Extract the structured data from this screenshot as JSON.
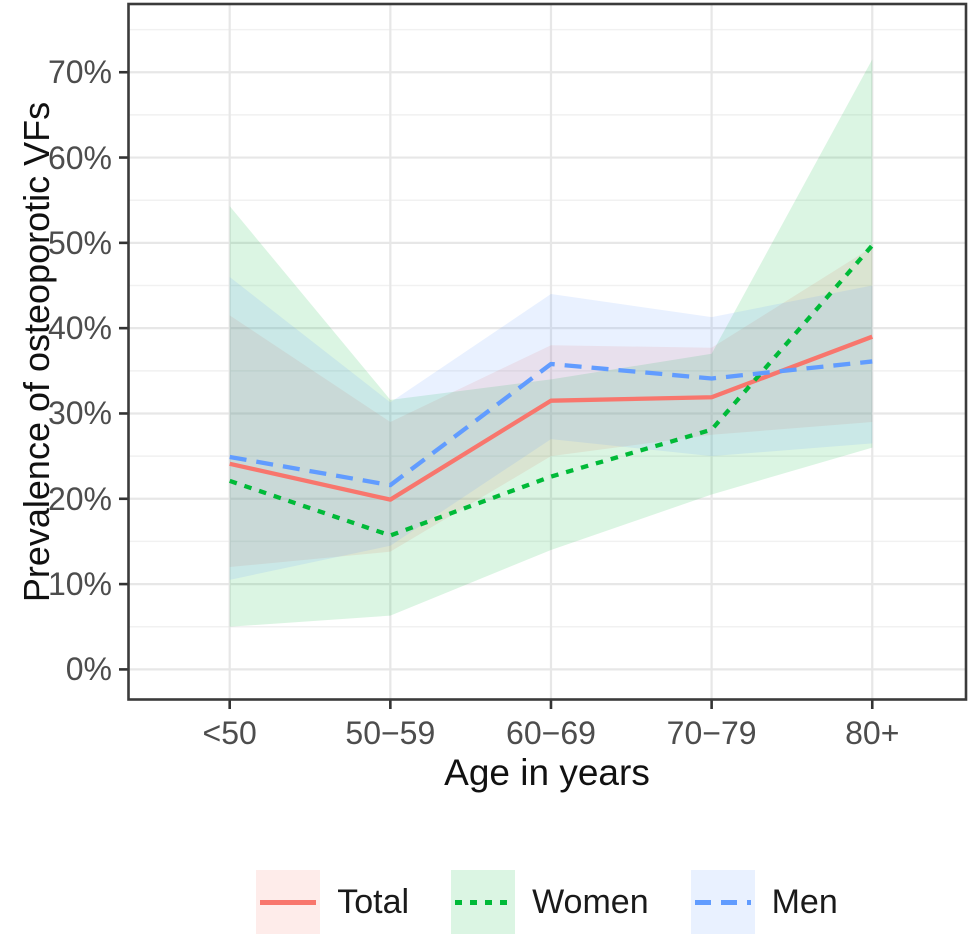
{
  "chart_data": {
    "type": "line",
    "title": "",
    "xlabel": "Age in years",
    "ylabel": "Prevalence of osteoporotic VFs",
    "categories": [
      "<50",
      "50−59",
      "60−69",
      "70−79",
      "80+"
    ],
    "y_ticks": [
      "0%",
      "10%",
      "20%",
      "30%",
      "40%",
      "50%",
      "60%",
      "70%"
    ],
    "y_tick_values": [
      0,
      10,
      20,
      30,
      40,
      50,
      60,
      70
    ],
    "y_minor_tick_values": [
      5,
      15,
      25,
      35,
      45,
      55,
      65,
      75
    ],
    "ylim": [
      -3.5,
      78
    ],
    "grid": "major and minor horizontal, major vertical at categories",
    "legend_position": "bottom",
    "units": "percent",
    "series": [
      {
        "name": "Total",
        "style": "solid",
        "color": "#F8766D",
        "values": [
          24.1,
          19.9,
          31.5,
          31.9,
          39.0
        ],
        "ci_low": [
          12.0,
          13.8,
          25.0,
          27.5,
          29.0
        ],
        "ci_high": [
          41.5,
          29.0,
          38.0,
          37.7,
          49.5
        ]
      },
      {
        "name": "Women",
        "style": "dotted",
        "color": "#00BA38",
        "values": [
          22.1,
          15.7,
          22.6,
          28.1,
          49.7
        ],
        "ci_low": [
          5.0,
          6.3,
          14.0,
          20.5,
          26.0
        ],
        "ci_high": [
          54.3,
          31.6,
          34.0,
          37.0,
          71.5
        ]
      },
      {
        "name": "Men",
        "style": "dashed",
        "color": "#619CFF",
        "values": [
          24.9,
          21.6,
          35.8,
          34.1,
          36.1
        ],
        "ci_low": [
          10.5,
          14.5,
          27.0,
          25.0,
          26.5
        ],
        "ci_high": [
          46.0,
          31.3,
          44.0,
          41.3,
          45.0
        ]
      }
    ],
    "ribbon_opacity": 0.14
  }
}
